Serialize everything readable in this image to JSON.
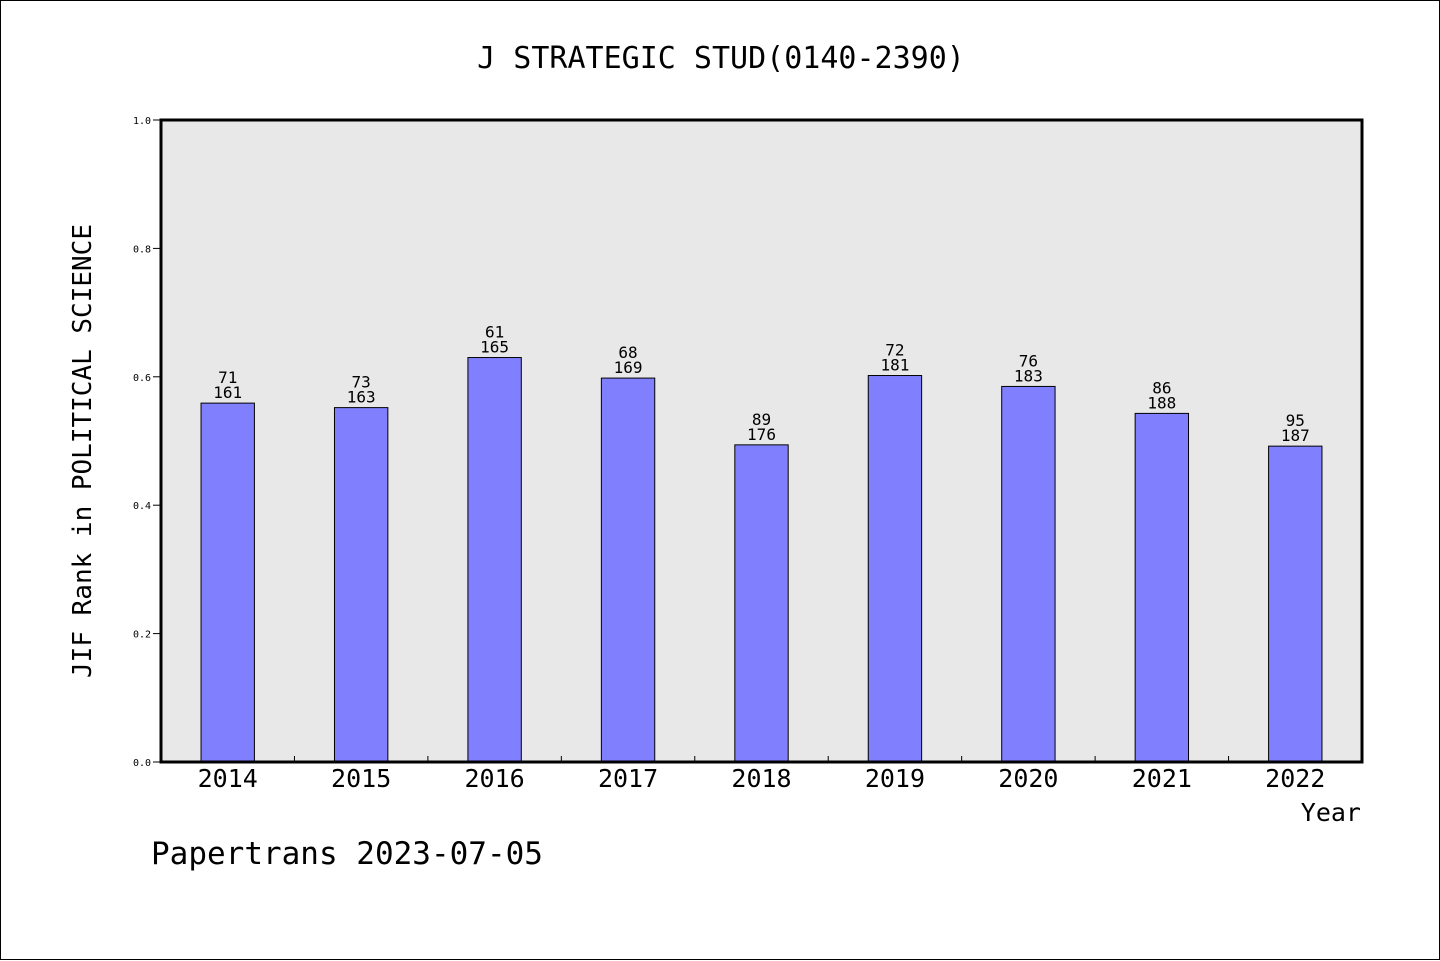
{
  "chart_data": {
    "type": "bar",
    "title": "J STRATEGIC STUD(0140-2390)",
    "xlabel": "Year",
    "ylabel": "JIF Rank in POLITICAL SCIENCE",
    "ylim": [
      0,
      1.0
    ],
    "yticks": [
      "0.0",
      "0.2",
      "0.4",
      "0.6",
      "0.8",
      "1.0"
    ],
    "ytick_values": [
      0,
      0.2,
      0.4,
      0.6,
      0.8,
      1.0
    ],
    "categories": [
      "2014",
      "2015",
      "2016",
      "2017",
      "2018",
      "2019",
      "2020",
      "2021",
      "2022"
    ],
    "values": [
      0.559,
      0.552,
      0.63,
      0.598,
      0.494,
      0.602,
      0.585,
      0.543,
      0.492
    ],
    "ranks": [
      "71",
      "73",
      "61",
      "68",
      "89",
      "72",
      "76",
      "86",
      "95"
    ],
    "totals": [
      "161",
      "163",
      "165",
      "169",
      "176",
      "181",
      "183",
      "188",
      "187"
    ],
    "grid": false,
    "colors": {
      "bar": "#8080ff",
      "bar_stroke": "#000000",
      "plot_bg": "#e8e8e8",
      "axis": "#000000"
    }
  },
  "footer": "Papertrans 2023-07-05"
}
